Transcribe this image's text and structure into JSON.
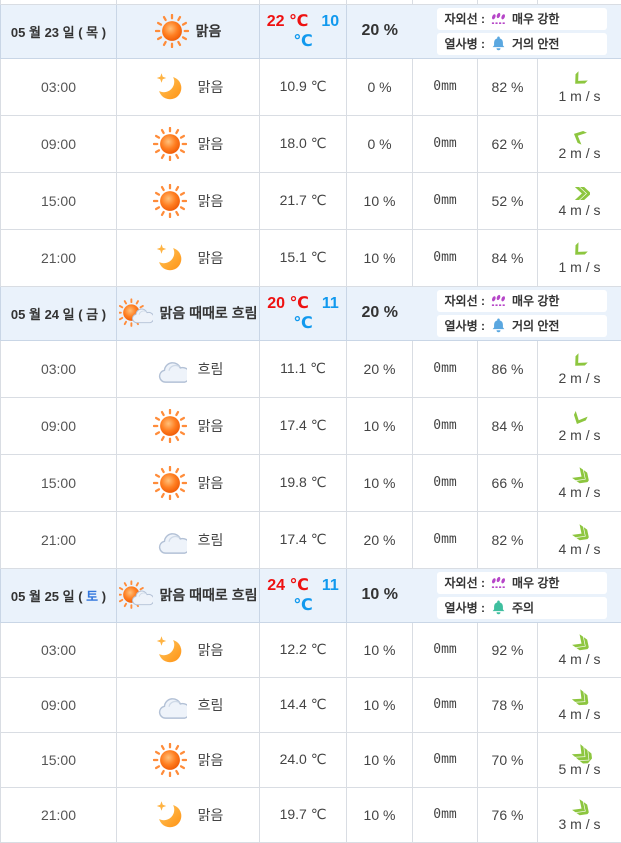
{
  "colors": {
    "header_bg": "#eaf2fb",
    "grid_border": "#d9dde3",
    "high_temp_red": "#ee1111",
    "low_temp_blue": "#1199ee",
    "saturday_blue": "#3377dd",
    "wind_green": "#8dc63f",
    "uv_purple": "#b646c8",
    "heat_icon_blue": "#5aa7e0",
    "heat_icon_green": "#3fbf9f"
  },
  "labels": {
    "uv_prefix": "자외선 :",
    "heat_prefix": "열사병 :"
  },
  "icon_names": {
    "sun": "sun-icon",
    "moon": "moon-icon",
    "cloud": "cloud-icon",
    "sun-cloud": "sun-cloud-icon",
    "uv": "uv-icon",
    "heat": "heat-illness-icon",
    "wind": "wind-direction-icon"
  },
  "days": [
    {
      "date_prefix": "05 월 23 일 ( ",
      "weekday": "목",
      "date_suffix": " )",
      "weekday_color": "#333333",
      "icon": "sun",
      "condition": "맑음",
      "high": "22 ℃",
      "low": "10 ℃",
      "precip": "20 %",
      "uv_value": "매우 강한",
      "heat_value": "거의 안전",
      "heat_icon_color": "#5aa7e0",
      "hours": [
        {
          "time": "03:00",
          "icon": "moon",
          "condition": "맑음",
          "temp": "10.9 ℃",
          "precip": "0 %",
          "rain": "0mm",
          "humidity": "82 %",
          "wind_speed": "1 m / s",
          "wind_dir_deg": 135,
          "wind_chevrons": 1
        },
        {
          "time": "09:00",
          "icon": "sun",
          "condition": "맑음",
          "temp": "18.0 ℃",
          "precip": "0 %",
          "rain": "0mm",
          "humidity": "62 %",
          "wind_speed": "2 m / s",
          "wind_dir_deg": 205,
          "wind_chevrons": 1
        },
        {
          "time": "15:00",
          "icon": "sun",
          "condition": "맑음",
          "temp": "21.7 ℃",
          "precip": "10 %",
          "rain": "0mm",
          "humidity": "52 %",
          "wind_speed": "4 m / s",
          "wind_dir_deg": 0,
          "wind_chevrons": 2
        },
        {
          "time": "21:00",
          "icon": "moon",
          "condition": "맑음",
          "temp": "15.1 ℃",
          "precip": "10 %",
          "rain": "0mm",
          "humidity": "84 %",
          "wind_speed": "1 m / s",
          "wind_dir_deg": 135,
          "wind_chevrons": 1
        }
      ]
    },
    {
      "date_prefix": "05 월 24 일 ( ",
      "weekday": "금",
      "date_suffix": " )",
      "weekday_color": "#333333",
      "icon": "sun-cloud",
      "condition": "맑음 때때로 흐림",
      "high": "20 ℃",
      "low": "11 ℃",
      "precip": "20 %",
      "uv_value": "매우 강한",
      "heat_value": "거의 안전",
      "heat_icon_color": "#5aa7e0",
      "hours": [
        {
          "time": "03:00",
          "icon": "cloud",
          "condition": "흐림",
          "temp": "11.1 ℃",
          "precip": "20 %",
          "rain": "0mm",
          "humidity": "86 %",
          "wind_speed": "2 m / s",
          "wind_dir_deg": 135,
          "wind_chevrons": 1
        },
        {
          "time": "09:00",
          "icon": "sun",
          "condition": "맑음",
          "temp": "17.4 ℃",
          "precip": "10 %",
          "rain": "0mm",
          "humidity": "84 %",
          "wind_speed": "2 m / s",
          "wind_dir_deg": 115,
          "wind_chevrons": 1
        },
        {
          "time": "15:00",
          "icon": "sun",
          "condition": "맑음",
          "temp": "19.8 ℃",
          "precip": "10 %",
          "rain": "0mm",
          "humidity": "66 %",
          "wind_speed": "4 m / s",
          "wind_dir_deg": 35,
          "wind_chevrons": 2
        },
        {
          "time": "21:00",
          "icon": "cloud",
          "condition": "흐림",
          "temp": "17.4 ℃",
          "precip": "20 %",
          "rain": "0mm",
          "humidity": "82 %",
          "wind_speed": "4 m / s",
          "wind_dir_deg": 35,
          "wind_chevrons": 2
        }
      ]
    },
    {
      "date_prefix": "05 월 25 일 ( ",
      "weekday": "토",
      "date_suffix": " )",
      "weekday_color": "#3377dd",
      "icon": "sun-cloud",
      "condition": "맑음 때때로 흐림",
      "high": "24 ℃",
      "low": "11 ℃",
      "precip": "10 %",
      "uv_value": "매우 강한",
      "heat_value": "주의",
      "heat_icon_color": "#3fbf9f",
      "hours": [
        {
          "time": "03:00",
          "icon": "moon",
          "condition": "맑음",
          "temp": "12.2 ℃",
          "precip": "10 %",
          "rain": "0mm",
          "humidity": "92 %",
          "wind_speed": "4 m / s",
          "wind_dir_deg": 35,
          "wind_chevrons": 2
        },
        {
          "time": "09:00",
          "icon": "cloud",
          "condition": "흐림",
          "temp": "14.4 ℃",
          "precip": "10 %",
          "rain": "0mm",
          "humidity": "78 %",
          "wind_speed": "4 m / s",
          "wind_dir_deg": 40,
          "wind_chevrons": 2
        },
        {
          "time": "15:00",
          "icon": "sun",
          "condition": "맑음",
          "temp": "24.0 ℃",
          "precip": "10 %",
          "rain": "0mm",
          "humidity": "70 %",
          "wind_speed": "5 m / s",
          "wind_dir_deg": 40,
          "wind_chevrons": 3
        },
        {
          "time": "21:00",
          "icon": "moon",
          "condition": "맑음",
          "temp": "19.7 ℃",
          "precip": "10 %",
          "rain": "0mm",
          "humidity": "76 %",
          "wind_speed": "3 m / s",
          "wind_dir_deg": 35,
          "wind_chevrons": 2
        }
      ]
    }
  ]
}
